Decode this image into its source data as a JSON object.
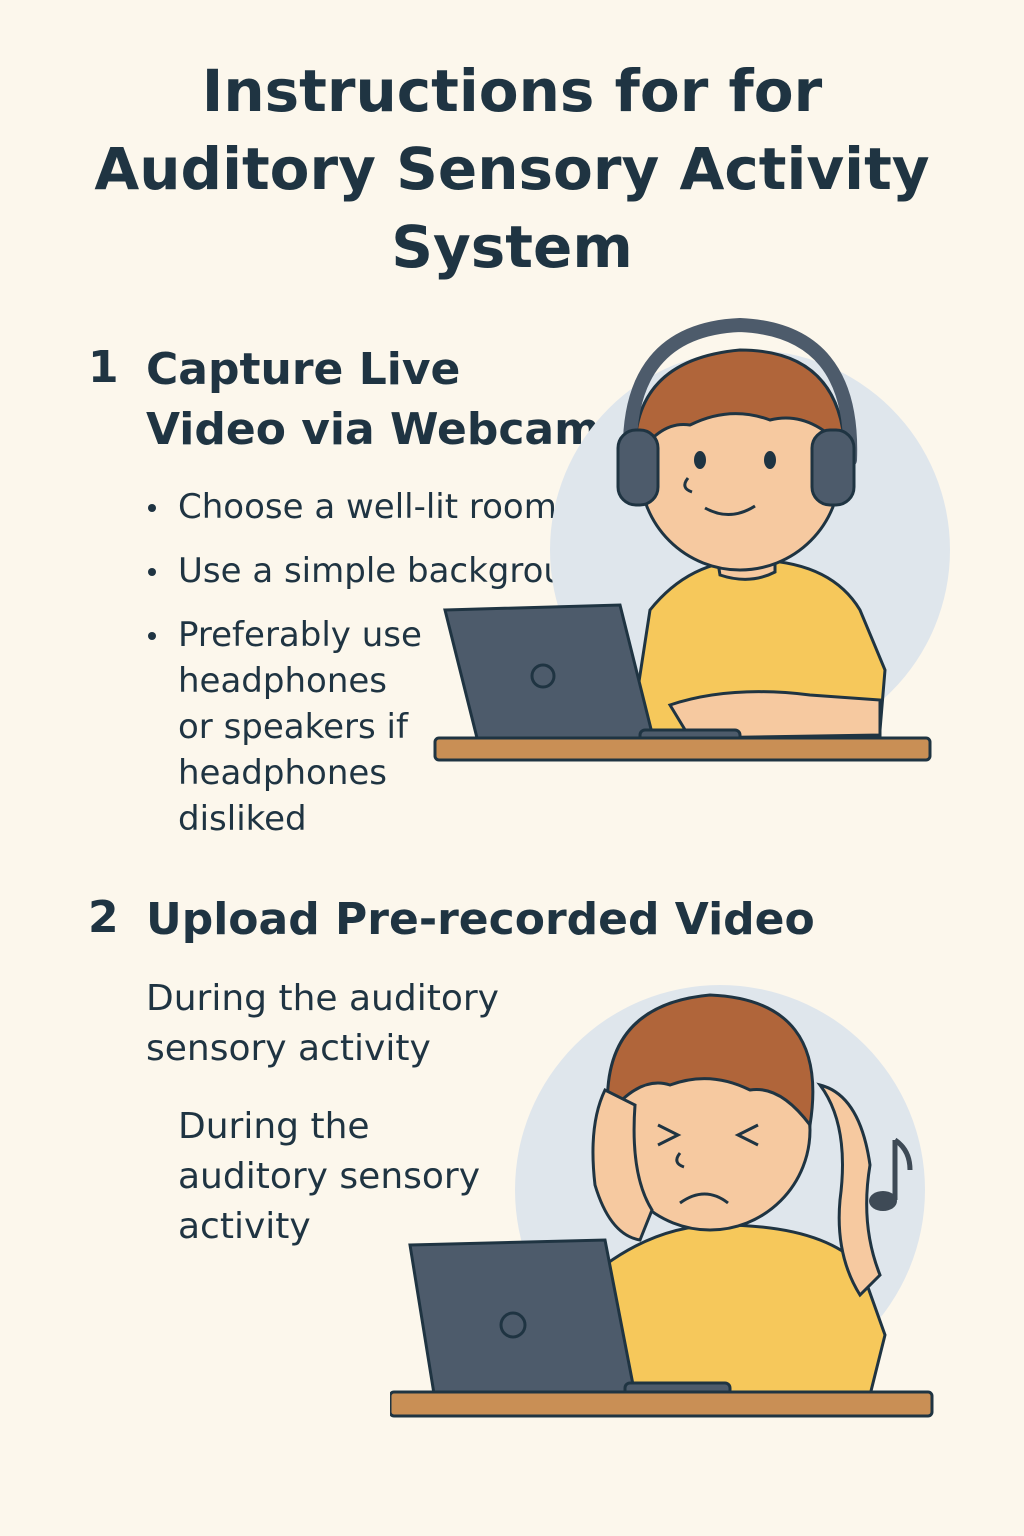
{
  "title": {
    "line1": "Instructions for for",
    "line2": "Auditory Sensory Activity",
    "line3": "System"
  },
  "steps": [
    {
      "number": "1",
      "title_line1": "Capture Live",
      "title_line2": "Video via Webcam",
      "bullets": [
        "Choose a well-lit room",
        "Use a simple background",
        "Preferably use headphones or speakers if headphones disliked"
      ]
    },
    {
      "number": "2",
      "title": "Upload Pre-recorded Video",
      "para1_line1": "During the auditory",
      "para1_line2": "sensory activity",
      "para2_line1": "During the",
      "para2_line2": "auditory sensory",
      "para2_line3": "activity"
    }
  ],
  "illustrations": {
    "top": "child-with-headphones-at-laptop",
    "bottom": "child-covering-ears-at-laptop"
  },
  "colors": {
    "background": "#fcf7ec",
    "text": "#1f3442",
    "shirt": "#f6c85b",
    "hair": "#b0653a",
    "skin": "#f6c9a0",
    "laptop": "#4d5b6b",
    "desk": "#c98f55",
    "circle": "#dfe6ec"
  }
}
